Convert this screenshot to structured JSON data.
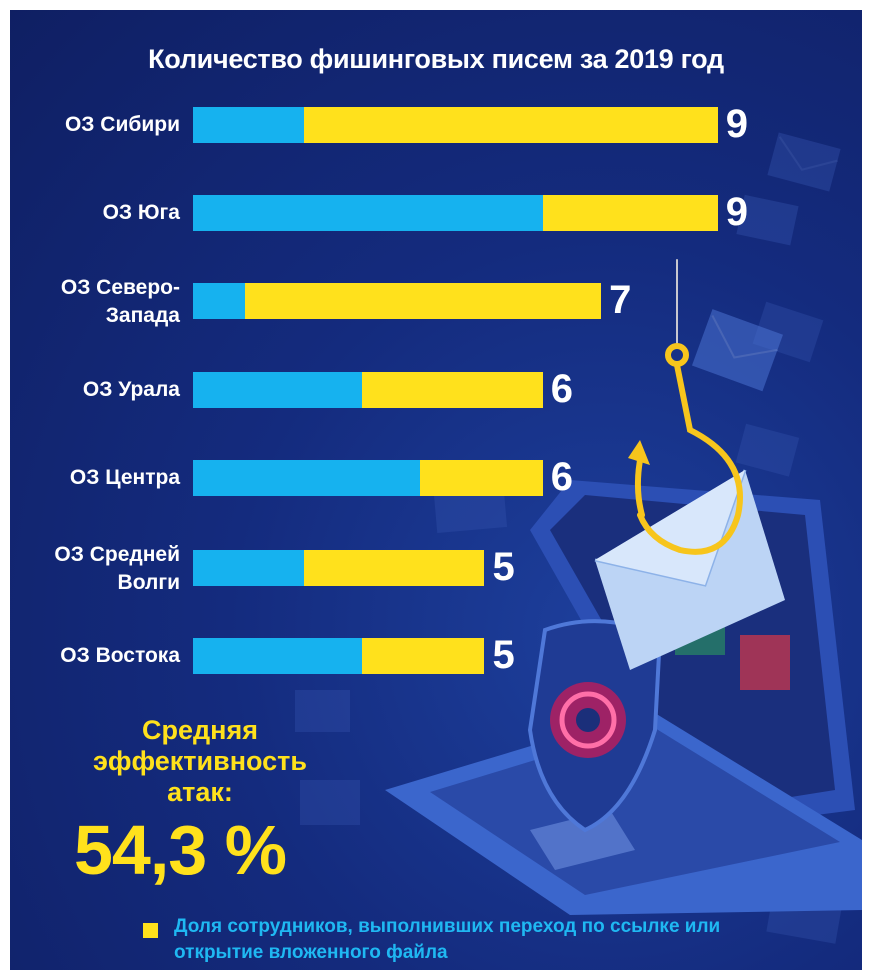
{
  "chart_data": {
    "type": "bar",
    "orientation": "horizontal",
    "stacked": true,
    "title": "Количество фишинговых писем за 2019 год",
    "categories": [
      "ОЗ Сибири",
      "ОЗ Юга",
      "ОЗ Северо-\nЗапада",
      "ОЗ Урала",
      "ОЗ Центра",
      "ОЗ Средней\nВолги",
      "ОЗ Востока"
    ],
    "totals": [
      9,
      9,
      7,
      6,
      6,
      5,
      5
    ],
    "series": [
      {
        "values": [
          1.9,
          6.0,
          0.9,
          2.9,
          3.9,
          1.9,
          2.9
        ],
        "color": "#16b2ef"
      },
      {
        "name": "Доля сотрудников, выполнивших переход по ссылке или открытие вложенного файла",
        "values": [
          7.1,
          3.0,
          6.1,
          3.1,
          2.1,
          3.1,
          2.1
        ],
        "color": "#ffe11c"
      }
    ],
    "xlim": [
      0,
      9
    ],
    "grid": false,
    "legend_position": "bottom"
  },
  "summary": {
    "label_lines": [
      "Средняя",
      "эффективность",
      "атак:"
    ],
    "value": "54,3 %"
  },
  "legend": {
    "text": "Доля сотрудников, выполнивших переход по ссылке или открытие вложенного файла"
  },
  "colors": {
    "background": "#142b7e",
    "blue": "#16b2ef",
    "yellow": "#ffe11c",
    "text": "#ffffff"
  }
}
